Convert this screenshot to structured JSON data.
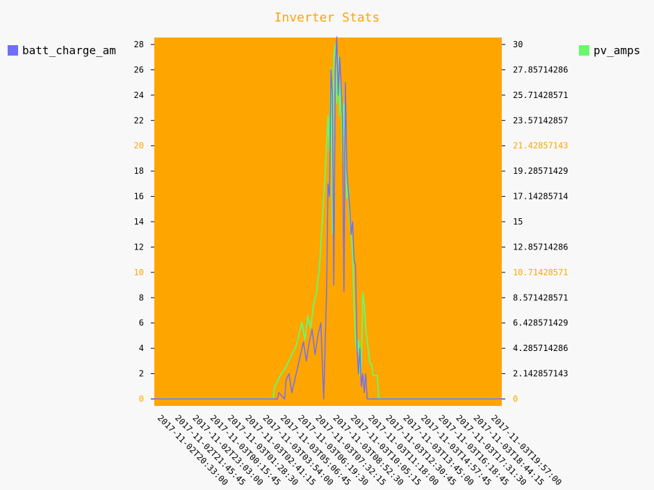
{
  "colors": {
    "background": "#f8f8f8",
    "plot_background": "#ffa500",
    "series_batt": "#6f6ffa",
    "series_pv": "#6af86a",
    "title": "#ffa500",
    "major_tick": "#ffa500"
  },
  "chart_data": {
    "type": "line",
    "title": "Inverter Stats",
    "legend": {
      "left_placement": "top-left",
      "right_placement": "top-right"
    },
    "y_left": {
      "min": 0,
      "max": 28.6,
      "ticks": [
        "0",
        "2",
        "4",
        "6",
        "8",
        "10",
        "12",
        "14",
        "16",
        "18",
        "20",
        "22",
        "24",
        "26",
        "28"
      ],
      "major": [
        "0",
        "10",
        "20"
      ]
    },
    "y_right": {
      "min": 0,
      "max": 30.6,
      "ticks": [
        "0",
        "2.142857143",
        "4.285714286",
        "6.428571429",
        "8.571428571",
        "10.71428571",
        "12.85714286",
        "15",
        "17.14285714",
        "19.28571429",
        "21.42857143",
        "23.57142857",
        "25.71428571",
        "27.85714286",
        "30"
      ],
      "major": [
        "0",
        "10.71428571",
        "21.42857143"
      ]
    },
    "x_ticks": [
      "2017-11-02T20:33:00",
      "2017-11-02T21:45:45",
      "2017-11-02T23:03:00",
      "2017-11-03T00:15:45",
      "2017-11-03T01:28:30",
      "2017-11-03T02:41:15",
      "2017-11-03T03:54:00",
      "2017-11-03T05:06:45",
      "2017-11-03T06:19:30",
      "2017-11-03T07:32:15",
      "2017-11-03T08:52:30",
      "2017-11-03T10:05:15",
      "2017-11-03T11:18:00",
      "2017-11-03T12:30:45",
      "2017-11-03T13:45:00",
      "2017-11-03T14:57:45",
      "2017-11-03T16:18:45",
      "2017-11-03T17:31:30",
      "2017-11-03T18:44:15",
      "2017-11-03T19:57:00"
    ],
    "series": [
      {
        "name": "batt_charge_am",
        "axis": "left",
        "x_hours": [
          0,
          8.5,
          8.6,
          9.0,
          9.1,
          9.3,
          9.5,
          9.7,
          9.9,
          10.1,
          10.3,
          10.5,
          10.7,
          10.9,
          11.1,
          11.3,
          11.5,
          11.7,
          11.9,
          12.0,
          12.1,
          12.2,
          12.3,
          12.4,
          12.5,
          12.6,
          12.7,
          12.8,
          12.9,
          13.0,
          13.1,
          13.2,
          13.3,
          13.5,
          13.6,
          13.7,
          13.8,
          13.9,
          14.0,
          14.1,
          14.2,
          14.3,
          14.4,
          14.5,
          14.6,
          14.7,
          14.8,
          14.9,
          15.0,
          15.2,
          15.4,
          15.6,
          15.8,
          16.0,
          16.2,
          16.4,
          16.6,
          16.8,
          17.0,
          17.2,
          17.4,
          17.6,
          17.8,
          18.0,
          24
        ],
        "values": [
          0,
          0,
          0.5,
          0,
          1.5,
          2,
          0.5,
          1.5,
          2.5,
          3.5,
          4.5,
          3,
          4.5,
          5.5,
          3.5,
          5,
          6,
          0,
          8.5,
          17,
          16,
          26,
          24,
          9,
          26,
          28.6,
          24,
          27,
          25,
          22,
          8.5,
          25,
          18,
          15,
          13,
          14,
          11,
          10.5,
          4,
          2,
          4,
          1,
          2,
          0.5,
          2,
          0,
          0,
          0,
          0,
          0,
          0,
          0,
          0,
          0,
          0,
          0,
          0,
          0,
          0,
          0,
          0,
          0,
          0,
          0,
          0
        ]
      },
      {
        "name": "pv_amps",
        "axis": "right",
        "x_hours": [
          0,
          8.2,
          8.3,
          8.5,
          8.7,
          9.0,
          9.2,
          9.4,
          9.6,
          9.8,
          10.0,
          10.2,
          10.4,
          10.6,
          10.8,
          11.0,
          11.2,
          11.4,
          11.6,
          11.8,
          12.0,
          12.1,
          12.2,
          12.3,
          12.4,
          12.5,
          12.6,
          12.7,
          12.8,
          12.9,
          13.0,
          13.1,
          13.2,
          13.3,
          13.4,
          13.5,
          13.6,
          13.7,
          13.8,
          13.9,
          14.0,
          14.1,
          14.2,
          14.3,
          14.4,
          14.5,
          14.6,
          14.7,
          14.8,
          14.9,
          15.0,
          15.1,
          15.2,
          15.3,
          15.4,
          15.5,
          15.6,
          24
        ],
        "values": [
          0,
          0,
          1,
          1.5,
          2,
          2.5,
          3,
          3.5,
          4,
          4.5,
          5.5,
          6.5,
          5,
          7,
          6,
          8,
          9,
          11,
          15,
          19,
          24,
          21,
          28,
          14,
          29,
          30,
          25,
          29,
          24,
          27,
          20,
          25,
          21,
          17,
          18,
          15,
          14,
          12,
          8,
          5,
          4,
          5,
          2,
          3,
          9,
          8,
          6,
          5,
          4,
          3,
          3,
          2,
          2,
          2,
          2,
          0,
          0,
          0
        ]
      }
    ]
  }
}
